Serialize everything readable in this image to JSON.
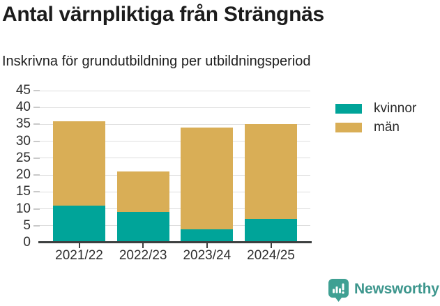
{
  "title": "Antal värnpliktiga från Strängnäs",
  "subtitle": "Inskrivna för grundutbildning per utbildningsperiod",
  "chart_data": {
    "type": "bar",
    "stacked": true,
    "title": "Antal värnpliktiga från Strängnäs",
    "subtitle": "Inskrivna för grundutbildning per utbildningsperiod",
    "categories": [
      "2021/22",
      "2022/23",
      "2023/24",
      "2024/25"
    ],
    "series": [
      {
        "name": "kvinnor",
        "color": "#00a499",
        "values": [
          11,
          9,
          4,
          7
        ]
      },
      {
        "name": "män",
        "color": "#d9ae56",
        "values": [
          25,
          12,
          30,
          28
        ]
      }
    ],
    "totals": [
      36,
      21,
      34,
      35
    ],
    "xlabel": "",
    "ylabel": "",
    "ylim": [
      0,
      45
    ],
    "ytick_step": 5,
    "grid": "horizontal",
    "legend_position": "right"
  },
  "branding": {
    "logo_text": "Newsworthy",
    "logo_color": "#3d968d",
    "logo_icon": "bar-chart-speech-bubble-icon"
  }
}
